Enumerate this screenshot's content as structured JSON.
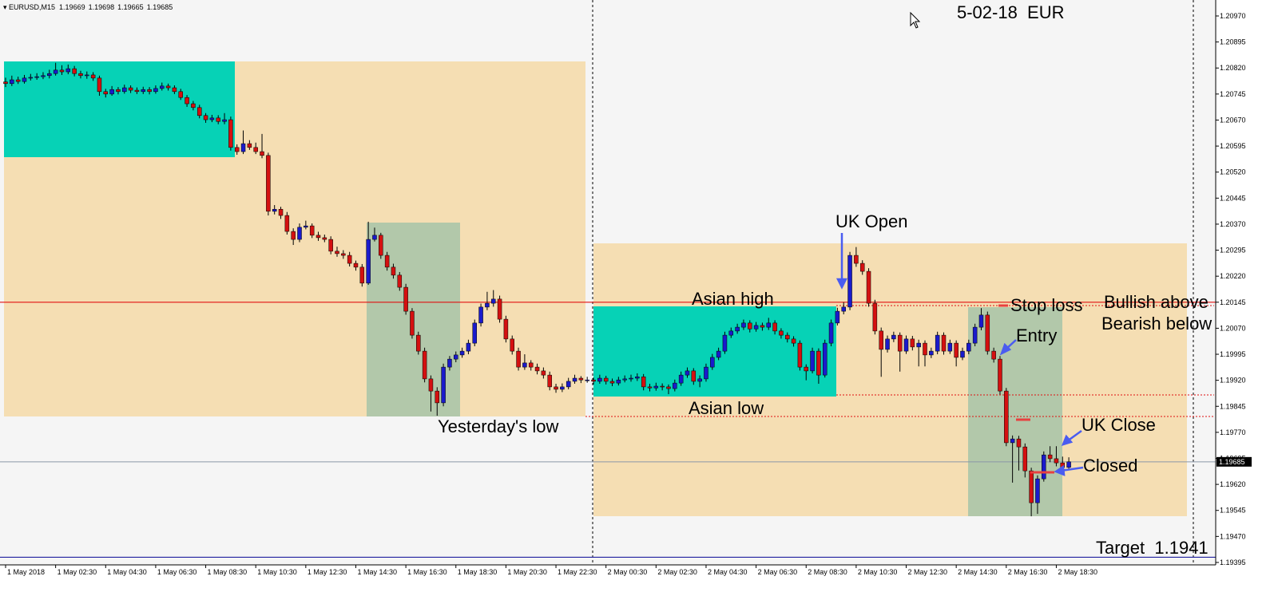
{
  "chart_data": {
    "type": "candlestick",
    "symbol": "EURUSD,M15",
    "up_color": "#1a1acc",
    "down_color": "#d41010",
    "wick_color": "#000000",
    "ylim": [
      1.19388,
      1.21016
    ],
    "yticks": [
      {
        "value": 1.2097,
        "label": "1.20970"
      },
      {
        "value": 1.20895,
        "label": "1.20895"
      },
      {
        "value": 1.2082,
        "label": "1.20820"
      },
      {
        "value": 1.20745,
        "label": "1.20745"
      },
      {
        "value": 1.2067,
        "label": "1.20670"
      },
      {
        "value": 1.20595,
        "label": "1.20595"
      },
      {
        "value": 1.2052,
        "label": "1.20520"
      },
      {
        "value": 1.20445,
        "label": "1.20445"
      },
      {
        "value": 1.2037,
        "label": "1.20370"
      },
      {
        "value": 1.20295,
        "label": "1.20295"
      },
      {
        "value": 1.2022,
        "label": "1.20220"
      },
      {
        "value": 1.20145,
        "label": "1.20145"
      },
      {
        "value": 1.2007,
        "label": "1.20070"
      },
      {
        "value": 1.19995,
        "label": "1.19995"
      },
      {
        "value": 1.1992,
        "label": "1.19920"
      },
      {
        "value": 1.19845,
        "label": "1.19845"
      },
      {
        "value": 1.1977,
        "label": "1.19770"
      },
      {
        "value": 1.19695,
        "label": "1.19695"
      },
      {
        "value": 1.1962,
        "label": "1.19620"
      },
      {
        "value": 1.19545,
        "label": "1.19545"
      },
      {
        "value": 1.1947,
        "label": "1.19470"
      },
      {
        "value": 1.19395,
        "label": "1.19395"
      }
    ],
    "xtick_labels": [
      "1 May 2018",
      "1 May 02:30",
      "1 May 04:30",
      "1 May 06:30",
      "1 May 08:30",
      "1 May 10:30",
      "1 May 12:30",
      "1 May 14:30",
      "1 May 16:30",
      "1 May 18:30",
      "1 May 20:30",
      "1 May 22:30",
      "2 May 00:30",
      "2 May 02:30",
      "2 May 04:30",
      "2 May 06:30",
      "2 May 08:30",
      "2 May 10:30",
      "2 May 12:30",
      "2 May 14:30",
      "2 May 16:30",
      "2 May 18:30"
    ],
    "levels": [
      {
        "value": 1.20145,
        "color": "#e01010"
      },
      {
        "value": 1.1941,
        "color": "#2020a0"
      }
    ],
    "annotations": {
      "date": "5-02-18  EUR",
      "uk_open": "UK Open",
      "asian_high": "Asian high",
      "asian_low": "Asian low",
      "yesterday_low": "Yesterday's low",
      "stop_loss": "Stop loss",
      "entry": "Entry",
      "uk_close": "UK Close",
      "closed": "Closed",
      "bullish": "Bullish above",
      "bearish": "Bearish below",
      "target": "Target  1.1941"
    },
    "ohlc": [
      [
        1.2078,
        1.20792,
        1.20765,
        1.20775
      ],
      [
        1.20775,
        1.20798,
        1.20768,
        1.20786
      ],
      [
        1.20786,
        1.20795,
        1.20774,
        1.20781
      ],
      [
        1.20781,
        1.208,
        1.20775,
        1.20791
      ],
      [
        1.20791,
        1.20803,
        1.20784,
        1.20793
      ],
      [
        1.20793,
        1.20805,
        1.20786,
        1.20795
      ],
      [
        1.20795,
        1.20808,
        1.20788,
        1.20798
      ],
      [
        1.20798,
        1.20815,
        1.2079,
        1.20804
      ],
      [
        1.20804,
        1.20835,
        1.20798,
        1.20814
      ],
      [
        1.20814,
        1.20828,
        1.208,
        1.20809
      ],
      [
        1.20809,
        1.2083,
        1.20802,
        1.20818
      ],
      [
        1.20818,
        1.20826,
        1.20796,
        1.20804
      ],
      [
        1.20804,
        1.20812,
        1.2079,
        1.20798
      ],
      [
        1.20798,
        1.2081,
        1.20789,
        1.208
      ],
      [
        1.208,
        1.20808,
        1.20783,
        1.20791
      ],
      [
        1.20791,
        1.20798,
        1.2074,
        1.20752
      ],
      [
        1.20752,
        1.2076,
        1.20735,
        1.20745
      ],
      [
        1.20745,
        1.20768,
        1.2074,
        1.20758
      ],
      [
        1.20758,
        1.20765,
        1.20744,
        1.20752
      ],
      [
        1.20752,
        1.20772,
        1.20746,
        1.20763
      ],
      [
        1.20763,
        1.2077,
        1.20748,
        1.20756
      ],
      [
        1.20756,
        1.20764,
        1.20745,
        1.20752
      ],
      [
        1.20752,
        1.20766,
        1.20745,
        1.20758
      ],
      [
        1.20758,
        1.20765,
        1.20744,
        1.20752
      ],
      [
        1.20752,
        1.2077,
        1.20746,
        1.20761
      ],
      [
        1.20761,
        1.20778,
        1.20755,
        1.20768
      ],
      [
        1.20768,
        1.20775,
        1.20755,
        1.20763
      ],
      [
        1.20763,
        1.2077,
        1.20745,
        1.20752
      ],
      [
        1.20752,
        1.2076,
        1.20728,
        1.20735
      ],
      [
        1.20735,
        1.20742,
        1.20708,
        1.20717
      ],
      [
        1.20717,
        1.20725,
        1.20698,
        1.20706
      ],
      [
        1.20706,
        1.20714,
        1.20675,
        1.20683
      ],
      [
        1.20683,
        1.2069,
        1.20662,
        1.20671
      ],
      [
        1.20671,
        1.20685,
        1.20664,
        1.20676
      ],
      [
        1.20676,
        1.20684,
        1.20658,
        1.20666
      ],
      [
        1.20666,
        1.2069,
        1.20658,
        1.20671
      ],
      [
        1.20671,
        1.2068,
        1.20582,
        1.20591
      ],
      [
        1.20591,
        1.206,
        1.2057,
        1.20579
      ],
      [
        1.20579,
        1.2064,
        1.20572,
        1.20602
      ],
      [
        1.20602,
        1.20612,
        1.20584,
        1.20591
      ],
      [
        1.20591,
        1.20605,
        1.20572,
        1.20579
      ],
      [
        1.20579,
        1.2063,
        1.2056,
        1.20568
      ],
      [
        1.20568,
        1.20576,
        1.20395,
        1.20407
      ],
      [
        1.20407,
        1.20425,
        1.20398,
        1.20413
      ],
      [
        1.20413,
        1.2042,
        1.20385,
        1.20395
      ],
      [
        1.20395,
        1.20405,
        1.2034,
        1.20349
      ],
      [
        1.20349,
        1.20358,
        1.2031,
        1.20326
      ],
      [
        1.20326,
        1.20372,
        1.20318,
        1.20361
      ],
      [
        1.20361,
        1.2038,
        1.20355,
        1.20365
      ],
      [
        1.20365,
        1.20372,
        1.2033,
        1.20338
      ],
      [
        1.20338,
        1.20348,
        1.20322,
        1.20331
      ],
      [
        1.20331,
        1.2034,
        1.20318,
        1.20326
      ],
      [
        1.20326,
        1.20335,
        1.20283,
        1.20292
      ],
      [
        1.20292,
        1.20305,
        1.20276,
        1.20285
      ],
      [
        1.20285,
        1.20295,
        1.2027,
        1.2028
      ],
      [
        1.2028,
        1.2029,
        1.20248,
        1.20257
      ],
      [
        1.20257,
        1.20265,
        1.20236,
        1.20246
      ],
      [
        1.20246,
        1.20255,
        1.2019,
        1.202
      ],
      [
        1.202,
        1.20377,
        1.20195,
        1.20326
      ],
      [
        1.20326,
        1.2036,
        1.2032,
        1.20338
      ],
      [
        1.20338,
        1.20345,
        1.2027,
        1.2028
      ],
      [
        1.2028,
        1.2029,
        1.20236,
        1.20246
      ],
      [
        1.20246,
        1.20256,
        1.20213,
        1.20223
      ],
      [
        1.20223,
        1.20232,
        1.20178,
        1.20188
      ],
      [
        1.20188,
        1.20198,
        1.20109,
        1.20119
      ],
      [
        1.20119,
        1.20128,
        1.2004,
        1.2005
      ],
      [
        1.2005,
        1.2006,
        1.19994,
        1.20004
      ],
      [
        1.20004,
        1.20014,
        1.19914,
        1.19924
      ],
      [
        1.19924,
        1.19934,
        1.1983,
        1.19889
      ],
      [
        1.19889,
        1.199,
        1.19818,
        1.19855
      ],
      [
        1.19855,
        1.19968,
        1.19845,
        1.19958
      ],
      [
        1.19958,
        1.1999,
        1.19948,
        1.19981
      ],
      [
        1.19981,
        1.20003,
        1.19972,
        1.19993
      ],
      [
        1.19993,
        1.20014,
        1.19985,
        1.20004
      ],
      [
        1.20004,
        1.20037,
        1.19995,
        1.20027
      ],
      [
        1.20027,
        1.20095,
        1.20018,
        1.20085
      ],
      [
        1.20085,
        1.20141,
        1.20075,
        1.20131
      ],
      [
        1.20131,
        1.20175,
        1.20122,
        1.20142
      ],
      [
        1.20142,
        1.2018,
        1.20132,
        1.20154
      ],
      [
        1.20154,
        1.20164,
        1.20086,
        1.20096
      ],
      [
        1.20096,
        1.20106,
        1.20029,
        1.20039
      ],
      [
        1.20039,
        1.20049,
        1.19994,
        1.20004
      ],
      [
        1.20004,
        1.20014,
        1.19948,
        1.19958
      ],
      [
        1.19958,
        1.19995,
        1.1995,
        1.1997
      ],
      [
        1.1997,
        1.19978,
        1.19948,
        1.19958
      ],
      [
        1.19958,
        1.19968,
        1.19937,
        1.19947
      ],
      [
        1.19947,
        1.19957,
        1.19925,
        1.19935
      ],
      [
        1.19935,
        1.19945,
        1.19891,
        1.19901
      ],
      [
        1.19901,
        1.1991,
        1.19884,
        1.19894
      ],
      [
        1.19894,
        1.19911,
        1.19886,
        1.19901
      ],
      [
        1.19901,
        1.19927,
        1.19894,
        1.19917
      ],
      [
        1.19917,
        1.19936,
        1.1991,
        1.19926
      ],
      [
        1.19926,
        1.19932,
        1.19912,
        1.19921
      ],
      [
        1.19921,
        1.1993,
        1.19913,
        1.19921
      ],
      [
        1.19921,
        1.19928,
        1.19908,
        1.19917
      ],
      [
        1.19917,
        1.19936,
        1.1991,
        1.19926
      ],
      [
        1.19926,
        1.19933,
        1.19908,
        1.19917
      ],
      [
        1.19917,
        1.19925,
        1.19903,
        1.19912
      ],
      [
        1.19912,
        1.1993,
        1.19905,
        1.19921
      ],
      [
        1.19921,
        1.19934,
        1.19914,
        1.19924
      ],
      [
        1.19924,
        1.19936,
        1.19916,
        1.19926
      ],
      [
        1.19926,
        1.1994,
        1.19918,
        1.1993
      ],
      [
        1.1993,
        1.19938,
        1.19891,
        1.19901
      ],
      [
        1.19901,
        1.1991,
        1.19888,
        1.19898
      ],
      [
        1.19898,
        1.19913,
        1.1989,
        1.19903
      ],
      [
        1.19903,
        1.19911,
        1.19891,
        1.19901
      ],
      [
        1.19901,
        1.19908,
        1.1988,
        1.19896
      ],
      [
        1.19896,
        1.19922,
        1.19888,
        1.19912
      ],
      [
        1.19912,
        1.19945,
        1.19904,
        1.19935
      ],
      [
        1.19935,
        1.19957,
        1.19927,
        1.19947
      ],
      [
        1.19947,
        1.19955,
        1.19907,
        1.19917
      ],
      [
        1.19917,
        1.19934,
        1.199,
        1.19924
      ],
      [
        1.19924,
        1.19968,
        1.19916,
        1.19958
      ],
      [
        1.19958,
        1.19996,
        1.1995,
        1.19986
      ],
      [
        1.19986,
        1.20014,
        1.19978,
        1.20004
      ],
      [
        1.20004,
        1.2006,
        1.19996,
        1.2005
      ],
      [
        1.2005,
        1.20072,
        1.20042,
        1.20062
      ],
      [
        1.20062,
        1.20083,
        1.20054,
        1.20073
      ],
      [
        1.20073,
        1.20095,
        1.20065,
        1.20085
      ],
      [
        1.20085,
        1.20093,
        1.20058,
        1.20068
      ],
      [
        1.20068,
        1.20088,
        1.2006,
        1.20078
      ],
      [
        1.20078,
        1.20086,
        1.20063,
        1.20073
      ],
      [
        1.20073,
        1.201,
        1.20065,
        1.20085
      ],
      [
        1.20085,
        1.20093,
        1.20052,
        1.20062
      ],
      [
        1.20062,
        1.2007,
        1.2004,
        1.2005
      ],
      [
        1.2005,
        1.20058,
        1.20029,
        1.20039
      ],
      [
        1.20039,
        1.20047,
        1.20017,
        1.20027
      ],
      [
        1.20027,
        1.20035,
        1.19948,
        1.19958
      ],
      [
        1.19958,
        1.19966,
        1.1992,
        1.19947
      ],
      [
        1.19947,
        1.20014,
        1.1994,
        1.20004
      ],
      [
        1.20004,
        1.20012,
        1.1991,
        1.19935
      ],
      [
        1.19935,
        1.20037,
        1.19928,
        1.20027
      ],
      [
        1.20027,
        1.20095,
        1.20018,
        1.20085
      ],
      [
        1.20085,
        1.20129,
        1.20078,
        1.20119
      ],
      [
        1.20119,
        1.20145,
        1.2011,
        1.20131
      ],
      [
        1.20131,
        1.2029,
        1.20122,
        1.2028
      ],
      [
        1.2028,
        1.20304,
        1.20247,
        1.20257
      ],
      [
        1.20257,
        1.20266,
        1.20224,
        1.20234
      ],
      [
        1.20234,
        1.20243,
        1.20132,
        1.20142
      ],
      [
        1.20142,
        1.20152,
        1.20052,
        1.20062
      ],
      [
        1.20062,
        1.20072,
        1.1993,
        1.20009
      ],
      [
        1.20009,
        1.20049,
        1.2,
        1.20039
      ],
      [
        1.20039,
        1.2006,
        1.2003,
        1.2005
      ],
      [
        1.2005,
        1.20058,
        1.19945,
        1.20004
      ],
      [
        1.20004,
        1.20049,
        1.19996,
        1.20039
      ],
      [
        1.20039,
        1.20048,
        1.20006,
        1.20016
      ],
      [
        1.20016,
        1.20037,
        1.1996,
        1.20027
      ],
      [
        1.20027,
        1.20035,
        1.1996,
        1.19993
      ],
      [
        1.19993,
        1.20014,
        1.19984,
        1.20004
      ],
      [
        1.20004,
        1.2006,
        1.19995,
        1.2005
      ],
      [
        1.2005,
        1.20058,
        1.19994,
        1.20004
      ],
      [
        1.20004,
        1.20037,
        1.19996,
        1.20027
      ],
      [
        1.20027,
        1.20035,
        1.1996,
        1.19986
      ],
      [
        1.19986,
        1.20014,
        1.19978,
        1.20004
      ],
      [
        1.20004,
        1.20037,
        1.19995,
        1.20027
      ],
      [
        1.20027,
        1.20083,
        1.20018,
        1.20073
      ],
      [
        1.20073,
        1.20128,
        1.20064,
        1.20108
      ],
      [
        1.20108,
        1.20118,
        1.19994,
        1.20004
      ],
      [
        1.20004,
        1.20014,
        1.19971,
        1.19981
      ],
      [
        1.19981,
        1.1999,
        1.19879,
        1.19889
      ],
      [
        1.19889,
        1.19898,
        1.1973,
        1.1974
      ],
      [
        1.1974,
        1.19761,
        1.19625,
        1.19751
      ],
      [
        1.19751,
        1.1976,
        1.1966,
        1.19728
      ],
      [
        1.19728,
        1.19738,
        1.1964,
        1.19659
      ],
      [
        1.19659,
        1.19668,
        1.19528,
        1.19567
      ],
      [
        1.19567,
        1.19646,
        1.19535,
        1.19636
      ],
      [
        1.19636,
        1.19715,
        1.19628,
        1.19705
      ],
      [
        1.19705,
        1.1973,
        1.19684,
        1.19694
      ],
      [
        1.19694,
        1.1973,
        1.19672,
        1.19682
      ],
      [
        1.19682,
        1.197,
        1.1965,
        1.19669
      ],
      [
        1.19669,
        1.19698,
        1.19665,
        1.19685
      ]
    ]
  }
}
